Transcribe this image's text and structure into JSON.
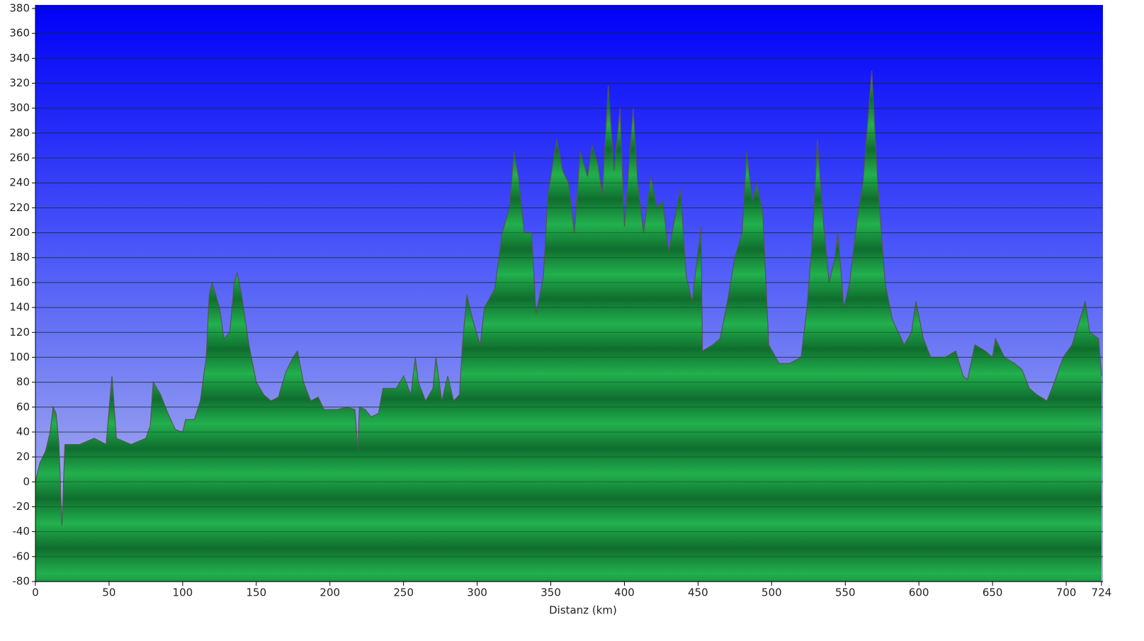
{
  "chart_data": {
    "type": "area",
    "x_label": "Distanz  (km)",
    "x": [
      0,
      3,
      7,
      10,
      12,
      14,
      16,
      18,
      20,
      30,
      40,
      48,
      52,
      55,
      65,
      75,
      78,
      80,
      85,
      90,
      95,
      100,
      102,
      108,
      112,
      116,
      118,
      120,
      125,
      128,
      132,
      135,
      137,
      140,
      145,
      150,
      155,
      160,
      165,
      170,
      175,
      178,
      182,
      187,
      192,
      196,
      205,
      212,
      217,
      219,
      220,
      224,
      228,
      233,
      236,
      245,
      250,
      255,
      258,
      260,
      265,
      270,
      272,
      276,
      280,
      284,
      288,
      290,
      293,
      297,
      302,
      305,
      312,
      317,
      322,
      325,
      328,
      332,
      337,
      340,
      345,
      348,
      352,
      354,
      358,
      362,
      366,
      370,
      375,
      378,
      382,
      385,
      389,
      393,
      397,
      400,
      406,
      409,
      413,
      418,
      422,
      426,
      430,
      438,
      442,
      446,
      452,
      453,
      460,
      465,
      470,
      475,
      480,
      483,
      487,
      490,
      494,
      498,
      505,
      512,
      520,
      524,
      528,
      531,
      535,
      539,
      543,
      545,
      549,
      553,
      558,
      562,
      568,
      572,
      577,
      582,
      590,
      595,
      598,
      603,
      608,
      618,
      625,
      630,
      633,
      638,
      645,
      650,
      652,
      658,
      665,
      670,
      675,
      680,
      687,
      692,
      698,
      704,
      708,
      713,
      716,
      722,
      724
    ],
    "values": [
      0,
      15,
      25,
      40,
      60,
      55,
      30,
      -35,
      30,
      30,
      35,
      30,
      85,
      35,
      30,
      35,
      45,
      80,
      70,
      55,
      42,
      40,
      50,
      50,
      65,
      100,
      150,
      160,
      140,
      115,
      120,
      160,
      168,
      150,
      110,
      80,
      70,
      65,
      68,
      88,
      100,
      105,
      80,
      65,
      68,
      58,
      58,
      60,
      58,
      25,
      60,
      58,
      52,
      55,
      75,
      75,
      85,
      70,
      100,
      80,
      65,
      75,
      100,
      65,
      85,
      65,
      70,
      110,
      150,
      130,
      110,
      140,
      155,
      200,
      220,
      265,
      245,
      200,
      200,
      135,
      165,
      230,
      260,
      275,
      250,
      240,
      200,
      265,
      245,
      270,
      255,
      230,
      318,
      250,
      300,
      205,
      300,
      240,
      200,
      245,
      220,
      225,
      185,
      235,
      165,
      145,
      205,
      105,
      110,
      115,
      145,
      180,
      200,
      265,
      225,
      240,
      215,
      110,
      95,
      95,
      100,
      140,
      200,
      275,
      210,
      160,
      180,
      200,
      140,
      160,
      210,
      240,
      330,
      240,
      160,
      130,
      110,
      120,
      145,
      115,
      100,
      100,
      105,
      85,
      82,
      110,
      105,
      100,
      115,
      100,
      95,
      90,
      75,
      70,
      65,
      80,
      100,
      110,
      125,
      145,
      120,
      115,
      85
    ],
    "xlim": [
      0,
      724
    ],
    "xticks": [
      0,
      50,
      100,
      150,
      200,
      250,
      300,
      350,
      400,
      450,
      500,
      550,
      600,
      650,
      700,
      724
    ],
    "ylim": [
      -80,
      380
    ],
    "yticks": [
      -80,
      -60,
      -40,
      -20,
      0,
      20,
      40,
      60,
      80,
      100,
      120,
      140,
      160,
      180,
      200,
      220,
      240,
      260,
      280,
      300,
      320,
      340,
      360,
      380
    ],
    "grid": true,
    "color": "#1fa84a"
  }
}
